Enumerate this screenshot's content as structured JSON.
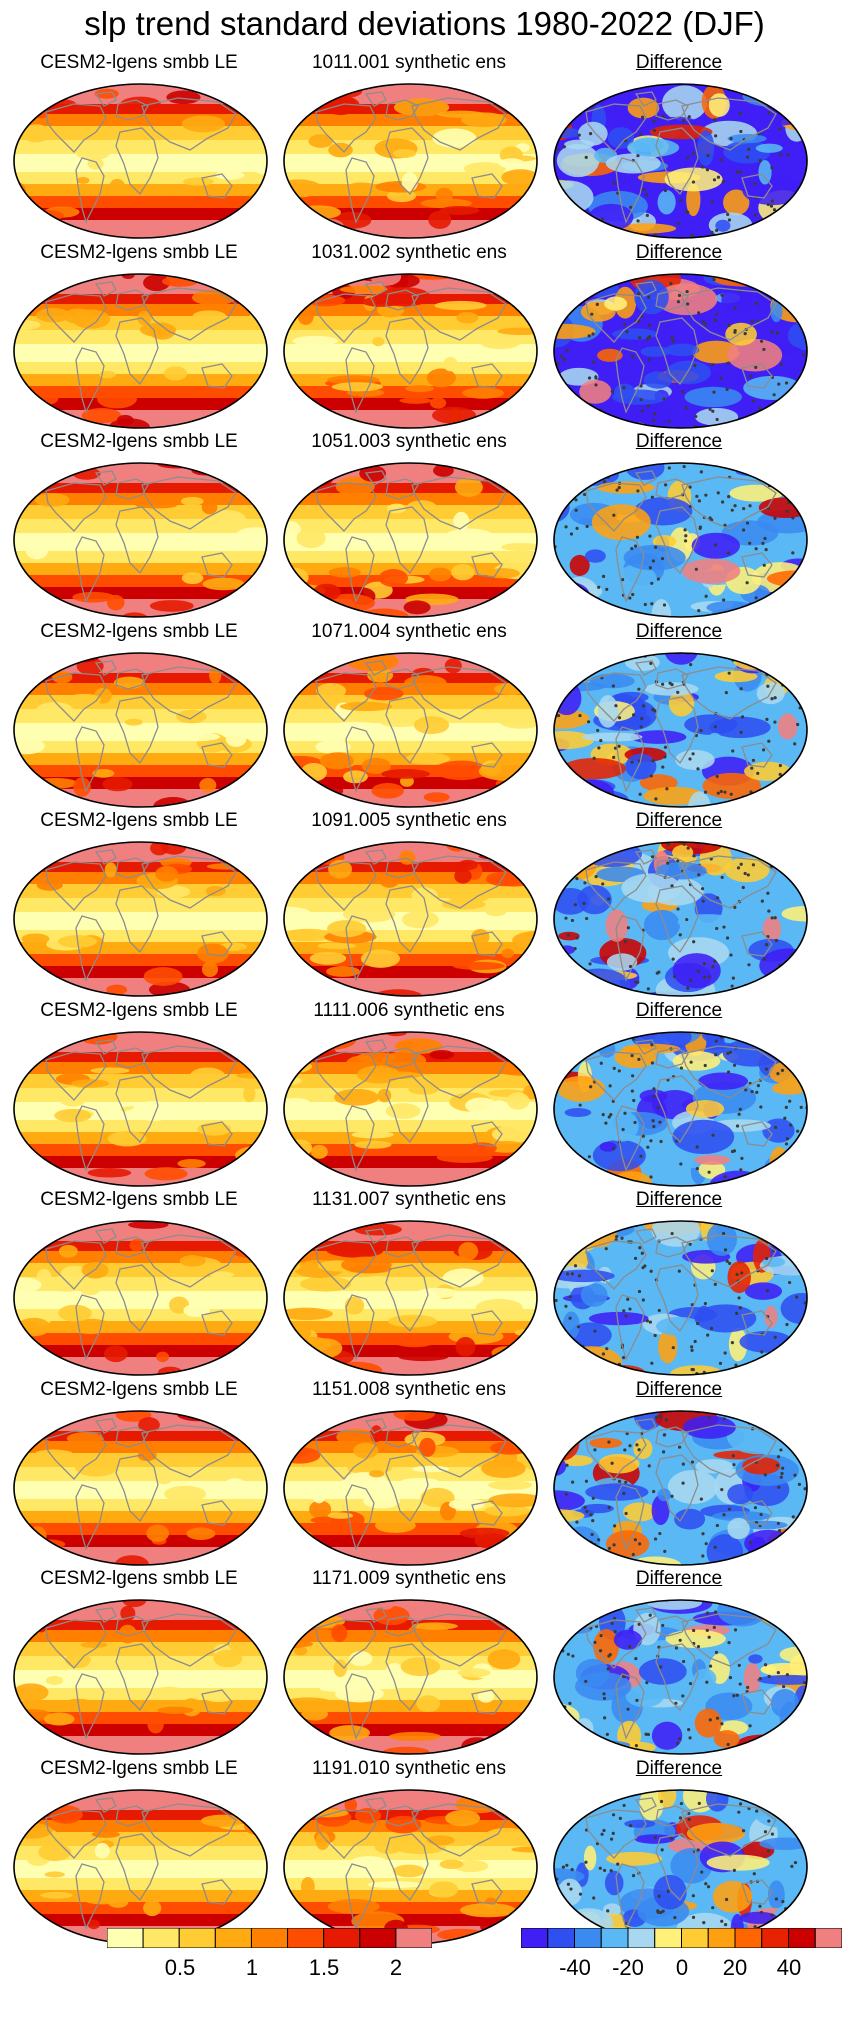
{
  "title": "slp trend standard deviations 1980-2022 (DJF)",
  "rows": [
    {
      "left_title": "CESM2-lgens smbb LE",
      "middle_title": "1011.001 synthetic ens",
      "right_title": "Difference"
    },
    {
      "left_title": "CESM2-lgens smbb LE",
      "middle_title": "1031.002 synthetic ens",
      "right_title": "Difference"
    },
    {
      "left_title": "CESM2-lgens smbb LE",
      "middle_title": "1051.003 synthetic ens",
      "right_title": "Difference"
    },
    {
      "left_title": "CESM2-lgens smbb LE",
      "middle_title": "1071.004 synthetic ens",
      "right_title": "Difference"
    },
    {
      "left_title": "CESM2-lgens smbb LE",
      "middle_title": "1091.005 synthetic ens",
      "right_title": "Difference"
    },
    {
      "left_title": "CESM2-lgens smbb LE",
      "middle_title": "1111.006 synthetic ens",
      "right_title": "Difference"
    },
    {
      "left_title": "CESM2-lgens smbb LE",
      "middle_title": "1131.007 synthetic ens",
      "right_title": "Difference"
    },
    {
      "left_title": "CESM2-lgens smbb LE",
      "middle_title": "1151.008 synthetic ens",
      "right_title": "Difference"
    },
    {
      "left_title": "CESM2-lgens smbb LE",
      "middle_title": "1171.009 synthetic ens",
      "right_title": "Difference"
    },
    {
      "left_title": "CESM2-lgens smbb LE",
      "middle_title": "1191.010 synthetic ens",
      "right_title": "Difference"
    }
  ],
  "colorbar_sd": {
    "colors": [
      "#ffffb2",
      "#ffe866",
      "#ffcc33",
      "#ffaa11",
      "#ff7f00",
      "#ff4d00",
      "#e61a00",
      "#cc0000",
      "#f08080"
    ],
    "labels": [
      "0.5",
      "1",
      "1.5",
      "2"
    ]
  },
  "colorbar_diff": {
    "colors": [
      "#3f1ff5",
      "#2f4ff0",
      "#3a8af0",
      "#5ab8f5",
      "#a8d8f0",
      "#fff07a",
      "#ffcc33",
      "#ffa010",
      "#ff6600",
      "#e62200",
      "#cc0000",
      "#f08080"
    ],
    "labels": [
      "-40",
      "-20",
      "0",
      "20",
      "40"
    ]
  },
  "colors": {
    "land_outline": "#8c8c8c",
    "map_border": "#000000",
    "stipple": "#3a3a3a"
  }
}
